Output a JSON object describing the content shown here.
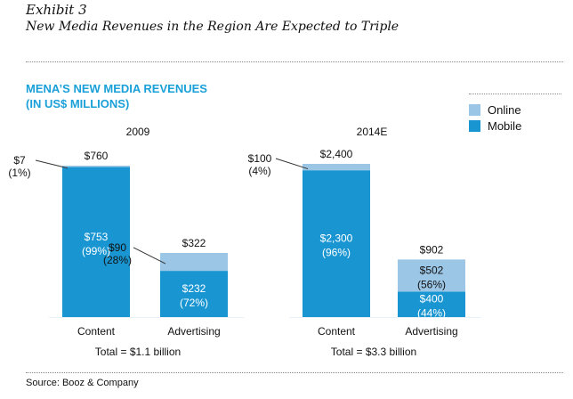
{
  "header": {
    "exhibit_label": "Exhibit 3",
    "exhibit_title": "New Media Revenues in the Region Are Expected to Triple"
  },
  "chart_title_lines": [
    "MENA’S NEW MEDIA REVENUES",
    "(IN US$ MILLIONS)"
  ],
  "legend": {
    "online_label": "Online",
    "mobile_label": "Mobile",
    "online_color": "#9cc6e6",
    "mobile_color": "#1996d2"
  },
  "footer": {
    "source": "Source: Booz & Company"
  },
  "chart_data": {
    "type": "bar",
    "stacked": true,
    "series": [
      {
        "name": "Mobile",
        "color": "#1996d2"
      },
      {
        "name": "Online",
        "color": "#9cc6e6"
      }
    ],
    "panels": [
      {
        "year": "2009",
        "total_text": "Total = $1.1 billion",
        "bars": [
          {
            "category": "Content",
            "total": 760,
            "total_label": "$760",
            "mobile": {
              "value": 753,
              "label": "$753",
              "pct": "(99%)"
            },
            "online": {
              "value": 7,
              "label": "$7",
              "pct": "(1%)"
            }
          },
          {
            "category": "Advertising",
            "total": 322,
            "total_label": "$322",
            "mobile": {
              "value": 232,
              "label": "$232",
              "pct": "(72%)"
            },
            "online": {
              "value": 90,
              "label": "$90",
              "pct": "(28%)"
            }
          }
        ]
      },
      {
        "year": "2014E",
        "total_text": "Total = $3.3 billion",
        "bars": [
          {
            "category": "Content",
            "total": 2400,
            "total_label": "$2,400",
            "mobile": {
              "value": 2300,
              "label": "$2,300",
              "pct": "(96%)"
            },
            "online": {
              "value": 100,
              "label": "$100",
              "pct": "(4%)"
            }
          },
          {
            "category": "Advertising",
            "total": 902,
            "total_label": "$902",
            "mobile": {
              "value": 400,
              "label": "$400",
              "pct": "(44%)"
            },
            "online": {
              "value": 502,
              "label": "$502",
              "pct": "(56%)"
            }
          }
        ]
      }
    ]
  }
}
